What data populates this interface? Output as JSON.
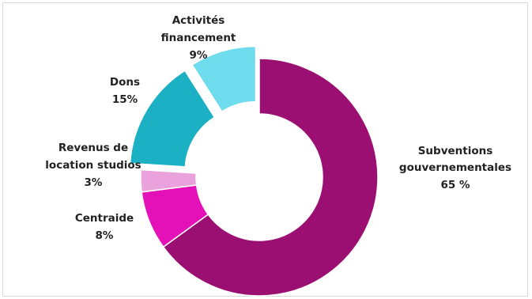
{
  "chart_data": {
    "type": "pie",
    "variant": "exploded-donut",
    "title": "",
    "start_angle_deg": 0,
    "direction": "clockwise",
    "slices": [
      {
        "label_lines": [
          "Subventions",
          "gouvernementales"
        ],
        "value_label": "65 %",
        "value": 65,
        "color": "#9b0f72",
        "exploded": false
      },
      {
        "label_lines": [
          "Centraide"
        ],
        "value_label": "8%",
        "value": 8,
        "color": "#e410b8",
        "exploded": false
      },
      {
        "label_lines": [
          "Revenus de",
          "location studios"
        ],
        "value_label": "3%",
        "value": 3,
        "color": "#eaa2dc",
        "exploded": false
      },
      {
        "label_lines": [
          "Dons"
        ],
        "value_label": "15%",
        "value": 15,
        "color": "#1bb0c4",
        "exploded": true
      },
      {
        "label_lines": [
          "Activités",
          "financement"
        ],
        "value_label": "9%",
        "value": 9,
        "color": "#6fdcee",
        "exploded": true
      }
    ]
  }
}
